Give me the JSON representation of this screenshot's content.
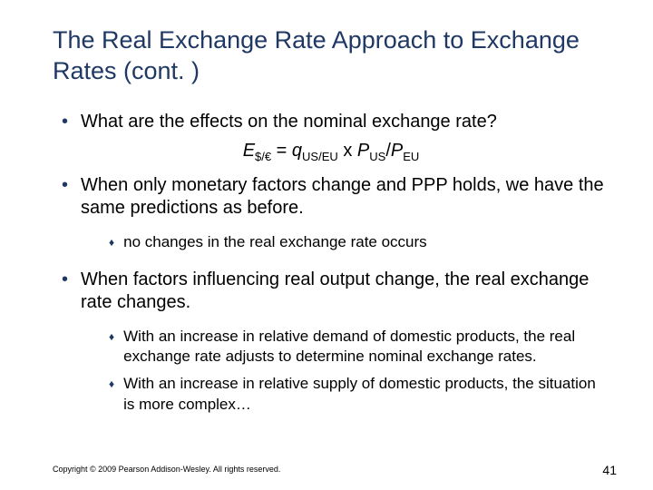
{
  "title": "The Real Exchange Rate Approach to Exchange Rates (cont. )",
  "b1": "What are the effects on the nominal exchange rate?",
  "eq": {
    "E": "E",
    "Esub": "$/€",
    "eq1": " = ",
    "q": "q",
    "qsub": "US/EU",
    "x": " x ",
    "P1": "P",
    "P1sub": "US",
    "slash": "/",
    "P2": "P",
    "P2sub": "EU"
  },
  "b2": "When only monetary factors change and PPP holds, we have the same predictions as before.",
  "b2a": "no changes in the real exchange rate occurs",
  "b3": "When factors influencing real output change, the real exchange rate changes.",
  "b3a": "With an increase in relative demand of domestic products, the real exchange rate adjusts to determine nominal exchange rates.",
  "b3b": "With an increase in relative supply of domestic products, the situation is more complex…",
  "copyright": "Copyright © 2009 Pearson Addison-Wesley. All rights reserved.",
  "pagenum": "41",
  "colors": {
    "title": "#1f3864",
    "bullet": "#1f3864",
    "text": "#000000",
    "bg": "#ffffff"
  },
  "fonts": {
    "title_size": 27,
    "body_size": 20,
    "sub_body_size": 17,
    "copyright_size": 9,
    "pagenum_size": 14
  }
}
